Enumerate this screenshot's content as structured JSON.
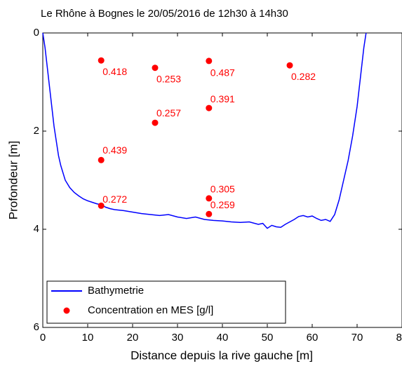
{
  "chart_data": {
    "type": "line",
    "title": "Le Rhône à Bognes le 20/05/2016 de 12h30 à 14h30",
    "x_label": "Distance depuis la rive gauche [m]",
    "y_label": "Profondeur [m]",
    "xlim": [
      0,
      80
    ],
    "xticks": [
      0,
      10,
      20,
      30,
      40,
      50,
      60,
      70,
      80
    ],
    "ylim": [
      0,
      6
    ],
    "yticks": [
      0,
      2,
      4,
      6
    ],
    "y_reversed": true,
    "legend": "lower left",
    "series": [
      {
        "name": "Bathymetrie",
        "type": "line",
        "color": "#0000ff",
        "x": [
          0,
          0.5,
          1,
          1.5,
          2,
          2.5,
          3,
          3.5,
          4,
          5,
          6,
          7,
          8,
          9,
          10,
          11,
          12,
          13,
          14,
          15,
          16,
          18,
          20,
          22,
          24,
          26,
          28,
          30,
          32,
          34,
          36,
          38,
          40,
          42,
          44,
          46,
          48,
          49,
          50,
          51,
          52,
          53,
          54,
          55,
          56,
          57,
          58,
          59,
          60,
          61,
          62,
          63,
          64,
          65,
          66,
          67,
          68,
          69,
          70,
          70.5,
          71,
          71.5,
          72
        ],
        "values": [
          0,
          0.3,
          0.7,
          1.1,
          1.5,
          1.9,
          2.2,
          2.5,
          2.7,
          3.0,
          3.15,
          3.25,
          3.32,
          3.38,
          3.42,
          3.45,
          3.48,
          3.5,
          3.55,
          3.58,
          3.6,
          3.62,
          3.65,
          3.68,
          3.7,
          3.72,
          3.7,
          3.75,
          3.78,
          3.75,
          3.8,
          3.82,
          3.83,
          3.85,
          3.86,
          3.85,
          3.9,
          3.88,
          3.98,
          3.92,
          3.95,
          3.96,
          3.9,
          3.85,
          3.8,
          3.74,
          3.72,
          3.75,
          3.73,
          3.78,
          3.82,
          3.8,
          3.84,
          3.7,
          3.4,
          3.0,
          2.6,
          2.1,
          1.5,
          1.1,
          0.7,
          0.3,
          0
        ]
      },
      {
        "name": "Concentration en MES [g/l]",
        "type": "scatter",
        "color": "#ff0000",
        "x": [
          13,
          25,
          37,
          55,
          37,
          25,
          13,
          13,
          37,
          37
        ],
        "values": [
          0.56,
          0.71,
          0.57,
          0.66,
          1.53,
          1.83,
          2.59,
          3.52,
          3.37,
          3.69
        ],
        "concentrations": [
          0.418,
          0.253,
          0.487,
          0.282,
          0.391,
          0.257,
          0.439,
          0.272,
          0.305,
          0.259
        ]
      }
    ]
  }
}
